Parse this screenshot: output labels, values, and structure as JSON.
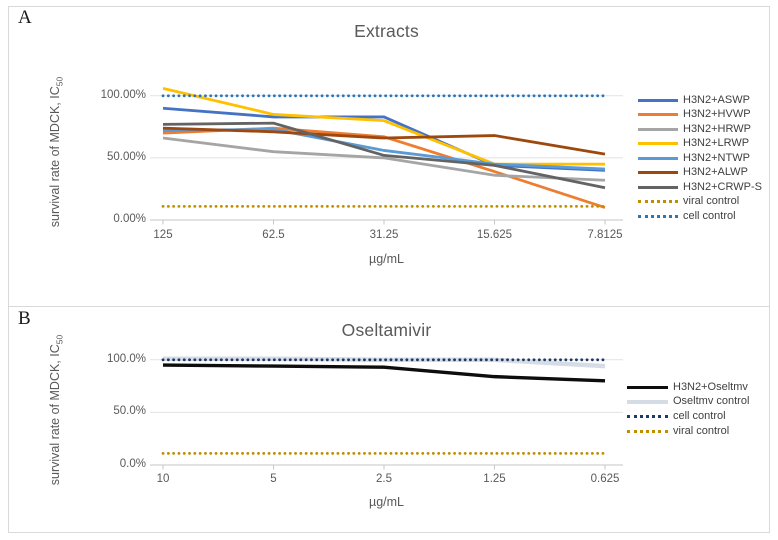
{
  "chart_data": [
    {
      "type": "line",
      "panel_label": "A",
      "title": "Extracts",
      "xlabel": "µg/mL",
      "ylabel_main": "survival rate of MDCK, IC",
      "ylabel_sub": "50",
      "categories": [
        "125",
        "62.5",
        "31.25",
        "15.625",
        "7.8125"
      ],
      "yticks": [
        {
          "value": 100,
          "label": "100.00%"
        },
        {
          "value": 50,
          "label": "50.00%"
        },
        {
          "value": 0,
          "label": "0.00%"
        }
      ],
      "ylim": [
        0,
        120
      ],
      "grid": "horizontal",
      "legend_position": "right",
      "series": [
        {
          "name": "H3N2+ASWP",
          "color": "#4472C4",
          "style": "solid",
          "values": [
            90,
            83,
            83,
            44,
            40
          ]
        },
        {
          "name": "H3N2+HVWP",
          "color": "#ED7D31",
          "style": "solid",
          "values": [
            70,
            74,
            67,
            39,
            10
          ]
        },
        {
          "name": "H3N2+HRWP",
          "color": "#A5A5A5",
          "style": "solid",
          "values": [
            66,
            55,
            50,
            36,
            32
          ]
        },
        {
          "name": "H3N2+LRWP",
          "color": "#FFC000",
          "style": "solid",
          "values": [
            106,
            85,
            80,
            45,
            45
          ]
        },
        {
          "name": "H3N2+NTWP",
          "color": "#5B9BD5",
          "style": "solid",
          "values": [
            72,
            73,
            56,
            45,
            41
          ]
        },
        {
          "name": "H3N2+ALWP",
          "color": "#9E480E",
          "style": "solid",
          "values": [
            74,
            71,
            66,
            68,
            53
          ]
        },
        {
          "name": "H3N2+CRWP-S",
          "color": "#636363",
          "style": "solid",
          "values": [
            77,
            78,
            52,
            44,
            26
          ]
        },
        {
          "name": "viral control",
          "color": "#BF8F00",
          "style": "dotted",
          "values": [
            11,
            11,
            11,
            11,
            11
          ]
        },
        {
          "name": "cell control",
          "color": "#2E75B6",
          "style": "dotted",
          "values": [
            100,
            100,
            100,
            100,
            100
          ]
        }
      ]
    },
    {
      "type": "line",
      "panel_label": "B",
      "title": "Oseltamivir",
      "xlabel": "µg/mL",
      "ylabel_main": "survival rate of MDCK, IC",
      "ylabel_sub": "50",
      "categories": [
        "10",
        "5",
        "2.5",
        "1.25",
        "0.625"
      ],
      "yticks": [
        {
          "value": 100,
          "label": "100.0%"
        },
        {
          "value": 50,
          "label": "50.0%"
        },
        {
          "value": 0,
          "label": "0.0%"
        }
      ],
      "ylim": [
        0,
        110
      ],
      "grid": "horizontal",
      "legend_position": "right",
      "series": [
        {
          "name": "H3N2+Oseltmv",
          "color": "#0D0D0D",
          "style": "solid",
          "values": [
            95,
            94,
            93,
            84,
            80
          ]
        },
        {
          "name": "Oseltmv control",
          "color": "#D6DCE5",
          "style": "band",
          "values": [
            101,
            101,
            100,
            100,
            94
          ]
        },
        {
          "name": "cell control",
          "color": "#203864",
          "style": "dotted",
          "values": [
            100,
            100,
            100,
            100,
            100
          ]
        },
        {
          "name": "viral control",
          "color": "#BF8F00",
          "style": "dotted",
          "values": [
            11,
            11,
            11,
            11,
            11
          ]
        }
      ]
    }
  ]
}
